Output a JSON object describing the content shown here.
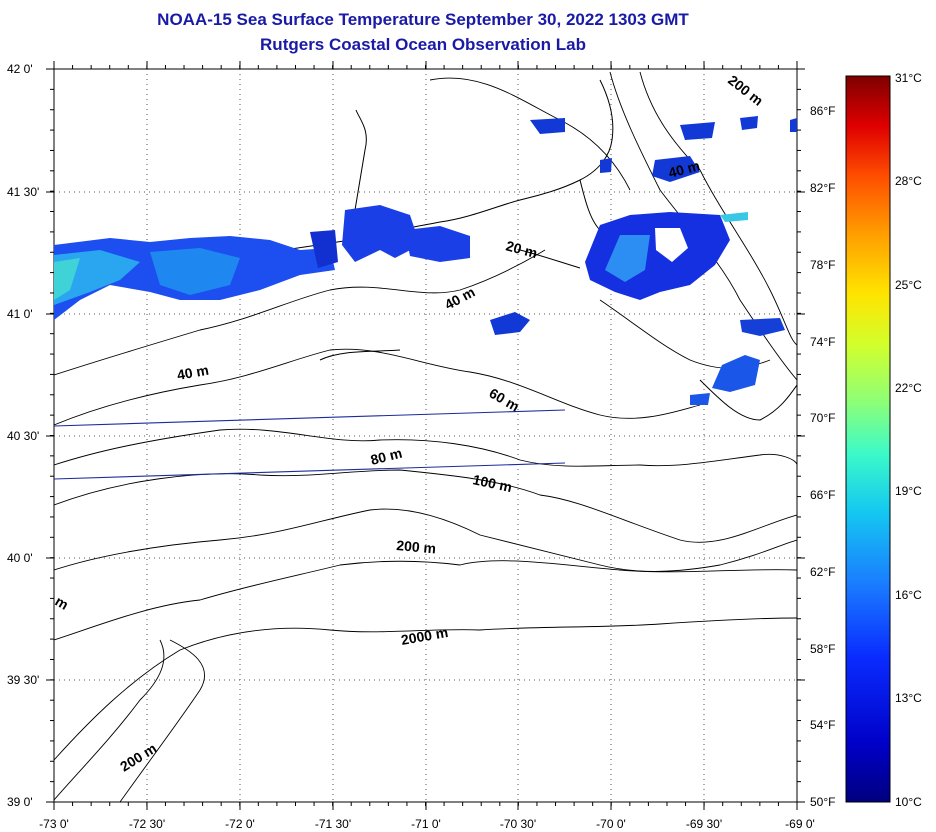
{
  "header": {
    "title": "NOAA-15 Sea Surface Temperature September 30, 2022 1303 GMT",
    "subtitle": "Rutgers Coastal Ocean Observation Lab"
  },
  "map": {
    "lon_range": [
      -73,
      -69
    ],
    "lat_range": [
      39,
      42
    ],
    "lon_ticks": [
      "-73 0'",
      "-72 30'",
      "-72 0'",
      "-71 30'",
      "-71 0'",
      "-70 30'",
      "-70 0'",
      "-69 30'",
      "-69 0'"
    ],
    "lat_ticks": [
      "42 0'",
      "41 30'",
      "41 0'",
      "40 30'",
      "40 0'",
      "39 30'",
      "39 0'"
    ],
    "contour_labels": [
      "200 m",
      "20 m",
      "40 m",
      "40 m",
      "40 m",
      "60 m",
      "80 m",
      "100 m",
      "200 m",
      "2000 m",
      "200 m",
      "m"
    ],
    "grid": "dotted",
    "land_color": "#ffffff",
    "contour_color": "#000000",
    "track_line_color": "#1c2a9c"
  },
  "colorbar": {
    "celsius_labels": [
      "31°C",
      "28°C",
      "25°C",
      "22°C",
      "19°C",
      "16°C",
      "13°C",
      "10°C"
    ],
    "fahrenheit_labels": [
      "86°F",
      "82°F",
      "78°F",
      "74°F",
      "70°F",
      "66°F",
      "62°F",
      "58°F",
      "54°F",
      "50°F"
    ],
    "colors": [
      "#00007f",
      "#0000c8",
      "#0a2cff",
      "#1a7cff",
      "#14c8f0",
      "#3cfac8",
      "#8cff78",
      "#d2ff2c",
      "#ffe400",
      "#ffa000",
      "#ff5000",
      "#e00000",
      "#7f0000"
    ]
  }
}
